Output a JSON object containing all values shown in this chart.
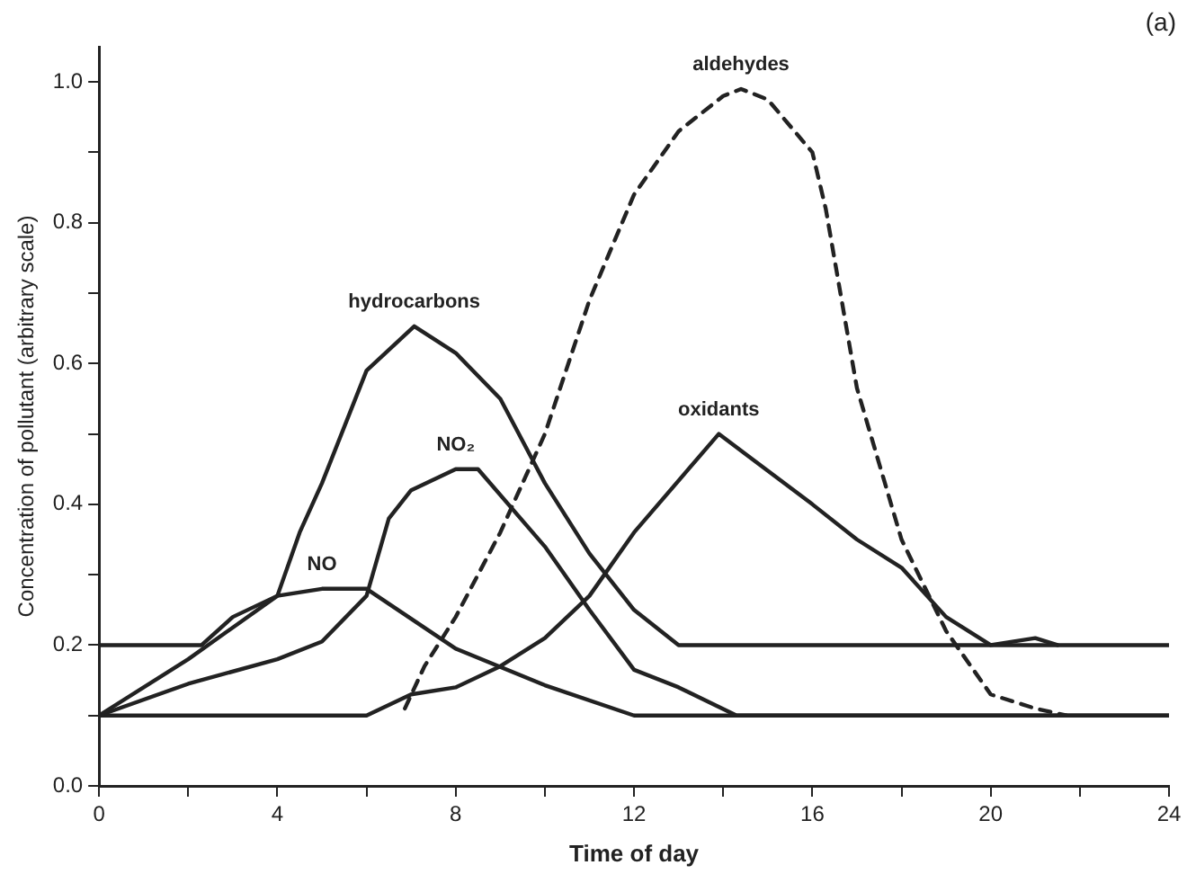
{
  "chart_data": {
    "type": "line",
    "xlabel": "Time of day",
    "ylabel": "Concentration of pollutant (arbitrary scale)",
    "annotations": [
      "(a)"
    ],
    "xlim": [
      0,
      24
    ],
    "xticks": [
      0,
      {
        "value": 2,
        "label": null
      },
      4,
      {
        "value": 6,
        "label": null
      },
      8,
      {
        "value": 10,
        "label": null
      },
      12,
      {
        "value": 14,
        "label": null
      },
      16,
      {
        "value": 18,
        "label": null
      },
      20,
      {
        "value": 22,
        "label": null
      },
      24
    ],
    "ylim": [
      0,
      1.05
    ],
    "yticks": [
      {
        "value": 0,
        "label": "0.0"
      },
      {
        "value": 0.1,
        "label": null
      },
      0.2,
      {
        "value": 0.3,
        "label": null
      },
      0.4,
      {
        "value": 0.5,
        "label": null
      },
      0.6,
      {
        "value": 0.7,
        "label": null
      },
      0.8,
      {
        "value": 0.9,
        "label": null
      },
      {
        "value": 1,
        "label": "1.0"
      }
    ],
    "grid": false,
    "legend": false,
    "marker": "none",
    "series": [
      {
        "name": "hydrocarbons",
        "color": "#222222",
        "line_style": "solid",
        "x": [
          0,
          2.3,
          3,
          4,
          4.5,
          5,
          6,
          7.07,
          8,
          9,
          10,
          11,
          12,
          13,
          24
        ],
        "values": [
          0.2,
          0.2,
          0.24,
          0.27,
          0.36,
          0.43,
          0.59,
          0.653,
          0.615,
          0.55,
          0.43,
          0.33,
          0.25,
          0.2,
          0.2
        ]
      },
      {
        "name": "NO",
        "color": "#222222",
        "line_style": "solid",
        "x": [
          0,
          2,
          4,
          5,
          6,
          8,
          10,
          12,
          24
        ],
        "values": [
          0.1,
          0.18,
          0.27,
          0.28,
          0.28,
          0.195,
          0.143,
          0.1,
          0.1
        ]
      },
      {
        "name": "NO₂",
        "color": "#222222",
        "line_style": "solid",
        "x": [
          0,
          2,
          4,
          5,
          6,
          6.5,
          7,
          8,
          8.5,
          10,
          11,
          12,
          13,
          14.3,
          24
        ],
        "values": [
          0.1,
          0.145,
          0.18,
          0.205,
          0.27,
          0.38,
          0.42,
          0.45,
          0.45,
          0.34,
          0.25,
          0.165,
          0.14,
          0.1,
          0.1
        ]
      },
      {
        "name": "oxidants",
        "color": "#222222",
        "line_style": "solid",
        "x": [
          0,
          6,
          7,
          8,
          9,
          10,
          11,
          12,
          13.9,
          16,
          17,
          18,
          19,
          20,
          21,
          21.5
        ],
        "values": [
          0.1,
          0.1,
          0.13,
          0.14,
          0.17,
          0.21,
          0.27,
          0.36,
          0.5,
          0.4,
          0.35,
          0.31,
          0.24,
          0.2,
          0.21,
          0.2
        ]
      },
      {
        "name": "aldehydes",
        "color": "#222222",
        "line_style": "dashed",
        "x": [
          6.86,
          7.3,
          8,
          9,
          10,
          11,
          12,
          13,
          14,
          14.4,
          15,
          16,
          16.3,
          17,
          18,
          19,
          20,
          21,
          21.7
        ],
        "values": [
          0.11,
          0.17,
          0.24,
          0.36,
          0.5,
          0.69,
          0.84,
          0.93,
          0.98,
          0.99,
          0.975,
          0.9,
          0.82,
          0.565,
          0.35,
          0.22,
          0.13,
          0.11,
          0.1
        ]
      }
    ]
  }
}
